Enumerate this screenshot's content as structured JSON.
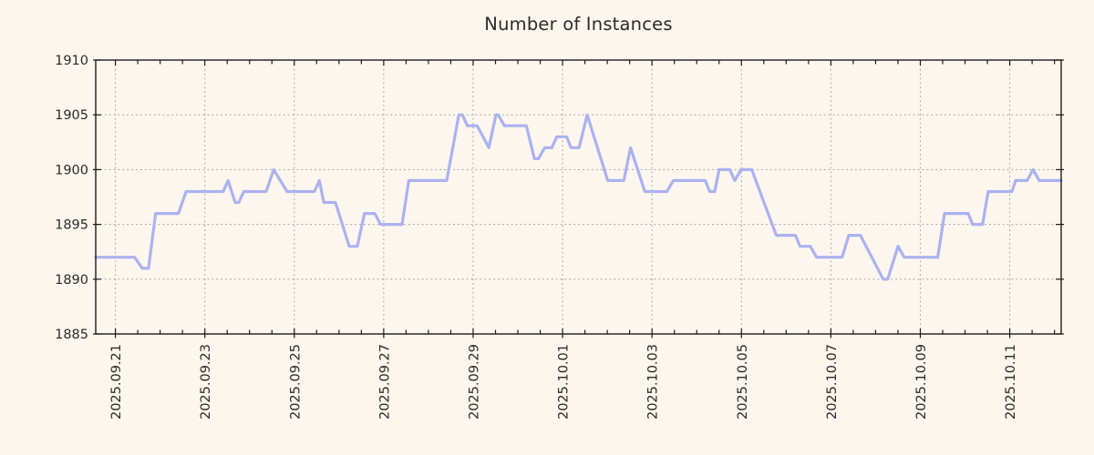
{
  "title": "Number of Instances",
  "colors": {
    "background": "#fdf6ee",
    "line": "#abb2ef",
    "grid": "#a9a9a9",
    "axis": "#1c1c1c",
    "text": "#2b2b2b"
  },
  "chart_data": {
    "type": "line",
    "title": "Number of Instances",
    "xlabel": "",
    "ylabel": "",
    "legend": "none",
    "grid": "dotted gray gridlines at major ticks, both axes",
    "x_unit": "days since 2025-09-21 00:00, samples roughly every 4-6 hours",
    "xlim": [
      -0.44,
      21.15
    ],
    "ylim": [
      1885,
      1910
    ],
    "y_ticks": [
      1885,
      1890,
      1895,
      1900,
      1905,
      1910
    ],
    "x_tick_positions": [
      0,
      2,
      4,
      6,
      8,
      10,
      12,
      14,
      16,
      18,
      20
    ],
    "x_tick_labels": [
      "2025.09.21",
      "2025.09.23",
      "2025.09.25",
      "2025.09.27",
      "2025.09.29",
      "2025.10.01",
      "2025.10.03",
      "2025.10.05",
      "2025.10.07",
      "2025.10.09",
      "2025.10.11"
    ],
    "x_minor_tick_step": 0.5,
    "series": [
      {
        "name": "instances",
        "points": [
          [
            -0.44,
            1892
          ],
          [
            0.43,
            1892
          ],
          [
            0.6,
            1891
          ],
          [
            0.74,
            1891
          ],
          [
            0.9,
            1896
          ],
          [
            1.41,
            1896
          ],
          [
            1.58,
            1898
          ],
          [
            2.41,
            1898
          ],
          [
            2.52,
            1899
          ],
          [
            2.68,
            1897
          ],
          [
            2.76,
            1897
          ],
          [
            2.87,
            1898
          ],
          [
            3.37,
            1898
          ],
          [
            3.54,
            1900
          ],
          [
            3.84,
            1898
          ],
          [
            4.45,
            1898
          ],
          [
            4.56,
            1899
          ],
          [
            4.66,
            1897
          ],
          [
            4.92,
            1897
          ],
          [
            5.23,
            1893
          ],
          [
            5.41,
            1893
          ],
          [
            5.57,
            1896
          ],
          [
            5.8,
            1896
          ],
          [
            5.93,
            1895
          ],
          [
            6.41,
            1895
          ],
          [
            6.56,
            1899
          ],
          [
            7.41,
            1899
          ],
          [
            7.68,
            1905
          ],
          [
            7.76,
            1905
          ],
          [
            7.87,
            1904
          ],
          [
            8.09,
            1904
          ],
          [
            8.35,
            1902
          ],
          [
            8.51,
            1905
          ],
          [
            8.56,
            1905
          ],
          [
            8.7,
            1904
          ],
          [
            9.19,
            1904
          ],
          [
            9.37,
            1901
          ],
          [
            9.46,
            1901
          ],
          [
            9.6,
            1902
          ],
          [
            9.76,
            1902
          ],
          [
            9.87,
            1903
          ],
          [
            10.09,
            1903
          ],
          [
            10.19,
            1902
          ],
          [
            10.37,
            1902
          ],
          [
            10.55,
            1905
          ],
          [
            11.01,
            1899
          ],
          [
            11.37,
            1899
          ],
          [
            11.52,
            1902
          ],
          [
            11.84,
            1898
          ],
          [
            12.33,
            1898
          ],
          [
            12.48,
            1899
          ],
          [
            13.19,
            1899
          ],
          [
            13.29,
            1898
          ],
          [
            13.4,
            1898
          ],
          [
            13.5,
            1900
          ],
          [
            13.74,
            1900
          ],
          [
            13.85,
            1899
          ],
          [
            13.99,
            1900
          ],
          [
            14.23,
            1900
          ],
          [
            14.78,
            1894
          ],
          [
            15.21,
            1894
          ],
          [
            15.31,
            1893
          ],
          [
            15.54,
            1893
          ],
          [
            15.68,
            1892
          ],
          [
            16.25,
            1892
          ],
          [
            16.4,
            1894
          ],
          [
            16.66,
            1894
          ],
          [
            17.17,
            1890
          ],
          [
            17.27,
            1890
          ],
          [
            17.5,
            1893
          ],
          [
            17.64,
            1892
          ],
          [
            18.39,
            1892
          ],
          [
            18.54,
            1896
          ],
          [
            19.07,
            1896
          ],
          [
            19.17,
            1895
          ],
          [
            19.39,
            1895
          ],
          [
            19.52,
            1898
          ],
          [
            20.05,
            1898
          ],
          [
            20.13,
            1899
          ],
          [
            20.39,
            1899
          ],
          [
            20.52,
            1900
          ],
          [
            20.66,
            1899
          ],
          [
            21.15,
            1899
          ]
        ]
      }
    ]
  }
}
